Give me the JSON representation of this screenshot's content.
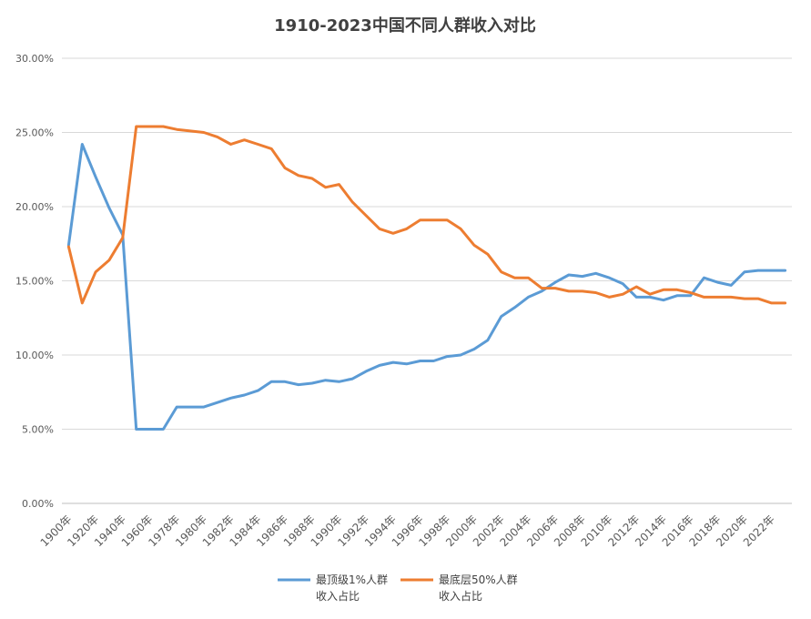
{
  "chart_data": {
    "type": "line",
    "title": "1910-2023中国不同人群收入对比",
    "xlabel": "",
    "ylabel": "",
    "ylim": [
      0,
      0.3
    ],
    "y_ticks": [
      "0.00%",
      "5.00%",
      "10.00%",
      "15.00%",
      "20.00%",
      "25.00%",
      "30.00%"
    ],
    "y_tick_values": [
      0,
      0.05,
      0.1,
      0.15,
      0.2,
      0.25,
      0.3
    ],
    "x": [
      "1900年",
      "1910年",
      "1920年",
      "1930年",
      "1940年",
      "1950年",
      "1960年",
      "1970年",
      "1978年",
      "1979年",
      "1980年",
      "1981年",
      "1982年",
      "1983年",
      "1984年",
      "1985年",
      "1986年",
      "1987年",
      "1988年",
      "1989年",
      "1990年",
      "1991年",
      "1992年",
      "1993年",
      "1994年",
      "1995年",
      "1996年",
      "1997年",
      "1998年",
      "1999年",
      "2000年",
      "2001年",
      "2002年",
      "2003年",
      "2004年",
      "2005年",
      "2006年",
      "2007年",
      "2008年",
      "2009年",
      "2010年",
      "2011年",
      "2012年",
      "2013年",
      "2014年",
      "2015年",
      "2016年",
      "2017年",
      "2018年",
      "2019年",
      "2020年",
      "2021年",
      "2022年",
      "2023年"
    ],
    "x_tick_labels": [
      "1900年",
      "1920年",
      "1940年",
      "1960年",
      "1978年",
      "1980年",
      "1982年",
      "1984年",
      "1986年",
      "1988年",
      "1990年",
      "1992年",
      "1994年",
      "1996年",
      "1998年",
      "2000年",
      "2002年",
      "2004年",
      "2006年",
      "2008年",
      "2010年",
      "2012年",
      "2014年",
      "2016年",
      "2018年",
      "2020年",
      "2022年"
    ],
    "x_tick_index": [
      0,
      2,
      4,
      6,
      8,
      10,
      12,
      14,
      16,
      18,
      20,
      22,
      24,
      26,
      28,
      30,
      32,
      34,
      36,
      38,
      40,
      42,
      44,
      46,
      48,
      50,
      52
    ],
    "series": [
      {
        "name": "最顶级1%人群收入占比",
        "name_lines": [
          "最顶级1%人群",
          "收入占比"
        ],
        "color": "#5B9BD5",
        "values": [
          0.174,
          0.242,
          0.22,
          0.199,
          0.181,
          0.05,
          0.05,
          0.05,
          0.065,
          0.065,
          0.065,
          0.068,
          0.071,
          0.073,
          0.076,
          0.082,
          0.082,
          0.08,
          0.081,
          0.083,
          0.082,
          0.084,
          0.089,
          0.093,
          0.095,
          0.094,
          0.096,
          0.096,
          0.099,
          0.1,
          0.104,
          0.11,
          0.126,
          0.132,
          0.139,
          0.143,
          0.149,
          0.154,
          0.153,
          0.155,
          0.152,
          0.148,
          0.139,
          0.139,
          0.137,
          0.14,
          0.14,
          0.152,
          0.149,
          0.147,
          0.156,
          0.157,
          0.157,
          0.157
        ]
      },
      {
        "name": "最底层50%人群收入占比",
        "name_lines": [
          "最底层50%人群",
          "收入占比"
        ],
        "color": "#ED7D31",
        "values": [
          0.173,
          0.135,
          0.156,
          0.164,
          0.179,
          0.254,
          0.254,
          0.254,
          0.252,
          0.251,
          0.25,
          0.247,
          0.242,
          0.245,
          0.242,
          0.239,
          0.226,
          0.221,
          0.219,
          0.213,
          0.215,
          0.203,
          0.194,
          0.185,
          0.182,
          0.185,
          0.191,
          0.191,
          0.191,
          0.185,
          0.174,
          0.168,
          0.156,
          0.152,
          0.152,
          0.145,
          0.145,
          0.143,
          0.143,
          0.142,
          0.139,
          0.141,
          0.146,
          0.141,
          0.144,
          0.144,
          0.142,
          0.139,
          0.139,
          0.139,
          0.138,
          0.138,
          0.135,
          0.135
        ]
      }
    ]
  }
}
